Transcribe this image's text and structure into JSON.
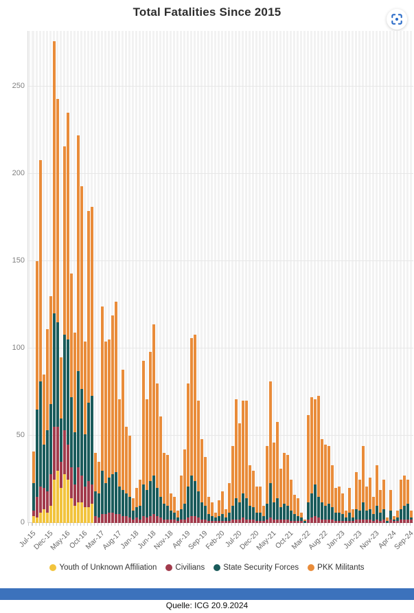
{
  "title": "Total Fatalities Since 2015",
  "expand_button": {
    "tooltip": "Enlarge"
  },
  "footer": {
    "source_label": "Quelle: ICG 20.9.2024"
  },
  "colors": {
    "youth": "#F2C43D",
    "civilians": "#A23B4C",
    "security_forces": "#1A5B5B",
    "pkk": "#E98C3A",
    "expand_icon_blue": "#2B6CC8",
    "footer_bar_blue": "#3C72BC",
    "grid": "#E7E7E7",
    "axis_text": "#7F7F7F",
    "title_text": "#2E2E2E"
  },
  "chart_data": {
    "type": "bar",
    "stacked": true,
    "title": "Total Fatalities Since 2015",
    "xlabel": "",
    "ylabel": "",
    "ylim": [
      0,
      282
    ],
    "y_ticks": [
      0,
      50,
      100,
      150,
      200,
      250
    ],
    "grid": "horizontal lines + light vertical month stripes",
    "legend_position": "bottom",
    "categories": [
      "Jul-15",
      "Aug-15",
      "Sep-15",
      "Oct-15",
      "Nov-15",
      "Dec-15",
      "Jan-16",
      "Feb-16",
      "Mar-16",
      "Apr-16",
      "May-16",
      "Jun-16",
      "Jul-16",
      "Aug-16",
      "Sep-16",
      "Oct-16",
      "Nov-16",
      "Dec-16",
      "Jan-17",
      "Feb-17",
      "Mar-17",
      "Apr-17",
      "May-17",
      "Jun-17",
      "Jul-17",
      "Aug-17",
      "Sep-17",
      "Oct-17",
      "Nov-17",
      "Dec-17",
      "Jan-18",
      "Feb-18",
      "Mar-18",
      "Apr-18",
      "May-18",
      "Jun-18",
      "Jul-18",
      "Aug-18",
      "Sep-18",
      "Oct-18",
      "Nov-18",
      "Dec-18",
      "Jan-19",
      "Feb-19",
      "Mar-19",
      "Apr-19",
      "May-19",
      "Jun-19",
      "Jul-19",
      "Aug-19",
      "Sep-19",
      "Oct-19",
      "Nov-19",
      "Dec-19",
      "Jan-20",
      "Feb-20",
      "Mar-20",
      "Apr-20",
      "May-20",
      "Jun-20",
      "Jul-20",
      "Aug-20",
      "Sep-20",
      "Oct-20",
      "Nov-20",
      "Dec-20",
      "Jan-21",
      "Feb-21",
      "Mar-21",
      "Apr-21",
      "May-21",
      "Jun-21",
      "Jul-21",
      "Aug-21",
      "Sep-21",
      "Oct-21",
      "Nov-21",
      "Dec-21",
      "Jan-22",
      "Feb-22",
      "Mar-22",
      "Apr-22",
      "May-22",
      "Jun-22",
      "Jul-22",
      "Aug-22",
      "Sep-22",
      "Oct-22",
      "Nov-22",
      "Dec-22",
      "Jan-23",
      "Feb-23",
      "Mar-23",
      "Apr-23",
      "May-23",
      "Jun-23",
      "Jul-23",
      "Aug-23",
      "Sep-23",
      "Oct-23",
      "Nov-23",
      "Dec-23",
      "Jan-24",
      "Feb-24",
      "Mar-24",
      "Apr-24",
      "May-24",
      "Jun-24",
      "Jul-24",
      "Aug-24",
      "Sep-24"
    ],
    "x_tick_labels": [
      "Jul-15",
      "Dec-15",
      "May-16",
      "Oct-16",
      "Mar-17",
      "Aug-17",
      "Jan-18",
      "Jun-18",
      "Nov-18",
      "Apr-19",
      "Sep-19",
      "Feb-20",
      "Jul-20",
      "Dec-20",
      "May-21",
      "Oct-21",
      "Mar-22",
      "Aug-22",
      "Jan-23",
      "Jun-23",
      "Nov-23",
      "Apr-24",
      "Sep-24"
    ],
    "x_tick_every": 5,
    "series": [
      {
        "name": "Youth of Unknown Affiliation",
        "color": "#F2C43D",
        "values": [
          4,
          3,
          6,
          8,
          6,
          10,
          25,
          30,
          20,
          28,
          25,
          14,
          10,
          12,
          12,
          9,
          9,
          11,
          0,
          0,
          0,
          0,
          0,
          0,
          0,
          0,
          0,
          0,
          0,
          0,
          0,
          0,
          0,
          0,
          0,
          0,
          0,
          0,
          0,
          0,
          0,
          0,
          0,
          0,
          0,
          0,
          0,
          0,
          0,
          0,
          0,
          0,
          0,
          0,
          0,
          0,
          0,
          0,
          0,
          0,
          0,
          0,
          0,
          0,
          0,
          0,
          0,
          0,
          0,
          0,
          0,
          0,
          0,
          0,
          0,
          0,
          0,
          0,
          0,
          0,
          0,
          0,
          0,
          0,
          0,
          0,
          0,
          0,
          0,
          0,
          0,
          0,
          0,
          0,
          0,
          0,
          0,
          0,
          0,
          0,
          0,
          0,
          0,
          0,
          0,
          0,
          0,
          0,
          0,
          0,
          0
        ]
      },
      {
        "name": "Civilians",
        "color": "#A23B4C",
        "values": [
          3,
          12,
          15,
          12,
          12,
          18,
          30,
          25,
          15,
          25,
          20,
          18,
          12,
          20,
          15,
          12,
          15,
          11,
          4,
          3,
          5,
          5,
          6,
          6,
          5,
          5,
          4,
          4,
          3,
          2,
          3,
          2,
          4,
          3,
          4,
          5,
          4,
          3,
          2,
          2,
          2,
          2,
          1,
          2,
          2,
          3,
          4,
          4,
          3,
          2,
          2,
          1,
          1,
          1,
          1,
          1,
          1,
          1,
          2,
          2,
          2,
          3,
          2,
          2,
          2,
          1,
          1,
          1,
          2,
          3,
          2,
          2,
          2,
          2,
          2,
          1,
          1,
          1,
          1,
          0,
          2,
          3,
          4,
          3,
          2,
          2,
          2,
          2,
          1,
          1,
          1,
          1,
          1,
          1,
          2,
          2,
          2,
          2,
          2,
          1,
          2,
          1,
          2,
          0,
          2,
          1,
          1,
          2,
          2,
          2,
          2
        ]
      },
      {
        "name": "State Security Forces",
        "color": "#1A5B5B",
        "values": [
          16,
          50,
          60,
          25,
          35,
          40,
          65,
          60,
          25,
          55,
          60,
          40,
          30,
          55,
          50,
          30,
          45,
          51,
          14,
          14,
          25,
          18,
          20,
          22,
          24,
          16,
          15,
          13,
          12,
          5,
          6,
          8,
          18,
          16,
          20,
          22,
          16,
          12,
          9,
          8,
          5,
          4,
          2,
          6,
          9,
          18,
          23,
          20,
          15,
          10,
          8,
          4,
          3,
          2,
          3,
          4,
          2,
          5,
          8,
          12,
          10,
          14,
          12,
          8,
          7,
          5,
          5,
          3,
          9,
          20,
          10,
          12,
          7,
          9,
          8,
          6,
          4,
          3,
          2,
          1,
          10,
          14,
          18,
          12,
          10,
          8,
          9,
          7,
          5,
          5,
          4,
          2,
          5,
          2,
          6,
          5,
          10,
          5,
          6,
          4,
          8,
          5,
          6,
          1,
          5,
          1,
          2,
          6,
          8,
          9,
          1
        ]
      },
      {
        "name": "PKK Militants",
        "color": "#E98C3A",
        "values": [
          18,
          85,
          127,
          40,
          58,
          62,
          156,
          128,
          35,
          108,
          130,
          71,
          57,
          135,
          116,
          53,
          110,
          108,
          22,
          18,
          94,
          81,
          79,
          91,
          98,
          50,
          69,
          38,
          35,
          7,
          11,
          15,
          71,
          52,
          74,
          87,
          60,
          46,
          29,
          29,
          10,
          9,
          4,
          19,
          31,
          59,
          79,
          84,
          52,
          36,
          28,
          10,
          8,
          3,
          9,
          13,
          5,
          17,
          34,
          57,
          45,
          53,
          56,
          23,
          21,
          15,
          15,
          6,
          33,
          58,
          34,
          44,
          22,
          29,
          29,
          18,
          11,
          10,
          3,
          1,
          50,
          55,
          49,
          58,
          36,
          35,
          33,
          24,
          14,
          15,
          12,
          4,
          14,
          5,
          21,
          18,
          32,
          14,
          18,
          10,
          23,
          13,
          17,
          2,
          12,
          2,
          4,
          17,
          17,
          14,
          4
        ]
      }
    ]
  }
}
